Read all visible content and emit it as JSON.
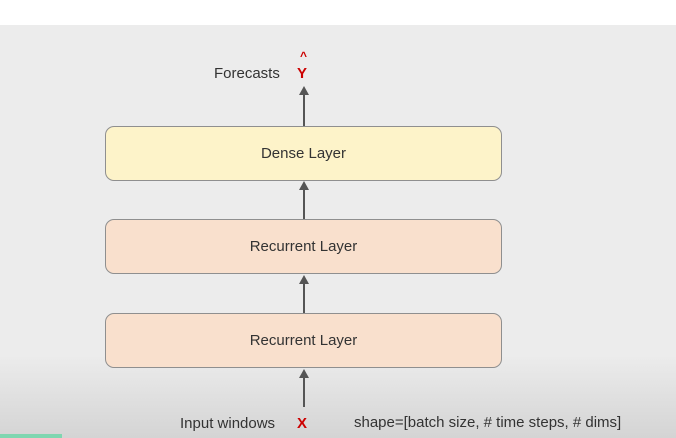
{
  "diagram": {
    "output": {
      "label": "Forecasts",
      "variable": "Y",
      "hat": "^"
    },
    "layers": [
      {
        "label": "Dense Layer",
        "color": "#fdf3c9"
      },
      {
        "label": "Recurrent Layer",
        "color": "#f9e0cd"
      },
      {
        "label": "Recurrent Layer",
        "color": "#f9e0cd"
      }
    ],
    "input": {
      "label": "Input windows",
      "variable": "X",
      "shape": "shape=[batch size, # time steps, # dims]"
    },
    "colors": {
      "accent_red": "#cc0000",
      "arrow": "#555555",
      "box_border": "#8f8f8f",
      "text": "#333333"
    }
  }
}
